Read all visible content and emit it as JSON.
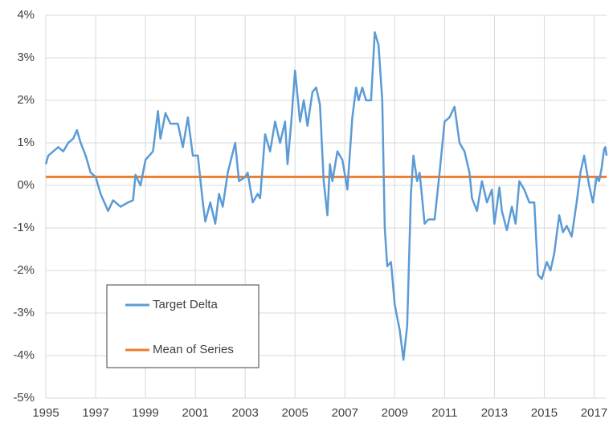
{
  "chart_data": {
    "type": "line",
    "xlim": [
      1995,
      2017.5
    ],
    "xticks": [
      1995,
      1997,
      1999,
      2001,
      2003,
      2005,
      2007,
      2009,
      2011,
      2013,
      2015,
      2017
    ],
    "ylim": [
      -5,
      4
    ],
    "yticks": [
      {
        "value": -5,
        "label": "-5%"
      },
      {
        "value": -4,
        "label": "-4%"
      },
      {
        "value": -3,
        "label": "-3%"
      },
      {
        "value": -2,
        "label": "-2%"
      },
      {
        "value": -1,
        "label": "-1%"
      },
      {
        "value": 0,
        "label": "0%"
      },
      {
        "value": 1,
        "label": "1%"
      },
      {
        "value": 2,
        "label": "2%"
      },
      {
        "value": 3,
        "label": "3%"
      },
      {
        "value": 4,
        "label": "4%"
      }
    ],
    "grid": true,
    "series": [
      {
        "name": "Target Delta",
        "color": "#5b9bd5",
        "x": [
          1995.0,
          1995.1,
          1995.3,
          1995.5,
          1995.7,
          1995.9,
          1996.1,
          1996.25,
          1996.4,
          1996.6,
          1996.8,
          1997.0,
          1997.2,
          1997.5,
          1997.7,
          1998.0,
          1998.3,
          1998.5,
          1998.6,
          1998.8,
          1999.0,
          1999.3,
          1999.5,
          1999.6,
          1999.8,
          2000.0,
          2000.3,
          2000.5,
          2000.7,
          2000.9,
          2001.1,
          2001.3,
          2001.4,
          2001.6,
          2001.8,
          2001.95,
          2002.1,
          2002.3,
          2002.6,
          2002.75,
          2003.0,
          2003.1,
          2003.3,
          2003.5,
          2003.6,
          2003.8,
          2004.0,
          2004.2,
          2004.4,
          2004.6,
          2004.7,
          2004.85,
          2005.0,
          2005.2,
          2005.35,
          2005.5,
          2005.7,
          2005.85,
          2006.0,
          2006.15,
          2006.3,
          2006.4,
          2006.5,
          2006.7,
          2006.9,
          2007.1,
          2007.3,
          2007.45,
          2007.55,
          2007.7,
          2007.85,
          2008.05,
          2008.2,
          2008.35,
          2008.5,
          2008.6,
          2008.7,
          2008.85,
          2009.0,
          2009.2,
          2009.35,
          2009.5,
          2009.65,
          2009.75,
          2009.9,
          2010.0,
          2010.2,
          2010.35,
          2010.6,
          2010.8,
          2011.0,
          2011.2,
          2011.4,
          2011.6,
          2011.8,
          2012.0,
          2012.1,
          2012.3,
          2012.5,
          2012.7,
          2012.9,
          2013.0,
          2013.2,
          2013.3,
          2013.5,
          2013.7,
          2013.85,
          2014.0,
          2014.2,
          2014.4,
          2014.6,
          2014.75,
          2014.9,
          2015.1,
          2015.25,
          2015.4,
          2015.6,
          2015.75,
          2015.9,
          2016.1,
          2016.3,
          2016.45,
          2016.6,
          2016.8,
          2016.95,
          2017.1,
          2017.2,
          2017.3,
          2017.4,
          2017.45,
          2017.5
        ],
        "values": [
          0.5,
          0.7,
          0.8,
          0.9,
          0.8,
          1.0,
          1.1,
          1.3,
          1.0,
          0.7,
          0.3,
          0.2,
          -0.2,
          -0.6,
          -0.35,
          -0.5,
          -0.4,
          -0.35,
          0.25,
          0.0,
          0.6,
          0.8,
          1.75,
          1.1,
          1.7,
          1.45,
          1.45,
          0.9,
          1.6,
          0.7,
          0.7,
          -0.4,
          -0.85,
          -0.4,
          -0.9,
          -0.2,
          -0.5,
          0.3,
          1.0,
          0.1,
          0.2,
          0.3,
          -0.4,
          -0.2,
          -0.3,
          1.2,
          0.8,
          1.5,
          1.0,
          1.5,
          0.5,
          1.5,
          2.7,
          1.5,
          2.0,
          1.4,
          2.2,
          2.3,
          1.9,
          0.1,
          -0.7,
          0.5,
          0.1,
          0.8,
          0.6,
          -0.1,
          1.6,
          2.3,
          2.0,
          2.3,
          2.0,
          2.0,
          3.6,
          3.3,
          2.0,
          -1.0,
          -1.9,
          -1.8,
          -2.8,
          -3.4,
          -4.1,
          -3.3,
          -0.2,
          0.7,
          0.1,
          0.3,
          -0.9,
          -0.8,
          -0.8,
          0.3,
          1.5,
          1.6,
          1.85,
          1.0,
          0.8,
          0.3,
          -0.3,
          -0.6,
          0.1,
          -0.4,
          -0.1,
          -0.9,
          -0.05,
          -0.6,
          -1.05,
          -0.5,
          -0.9,
          0.1,
          -0.1,
          -0.4,
          -0.4,
          -2.1,
          -2.2,
          -1.8,
          -2.0,
          -1.6,
          -0.7,
          -1.1,
          -0.95,
          -1.2,
          -0.4,
          0.3,
          0.7,
          0.0,
          -0.4,
          0.2,
          0.1,
          0.4,
          0.85,
          0.9,
          0.7
        ]
      },
      {
        "name": "Mean of Series",
        "color": "#ed7d31",
        "x": [
          1995,
          2017.5
        ],
        "values": [
          0.2,
          0.2
        ]
      }
    ]
  }
}
